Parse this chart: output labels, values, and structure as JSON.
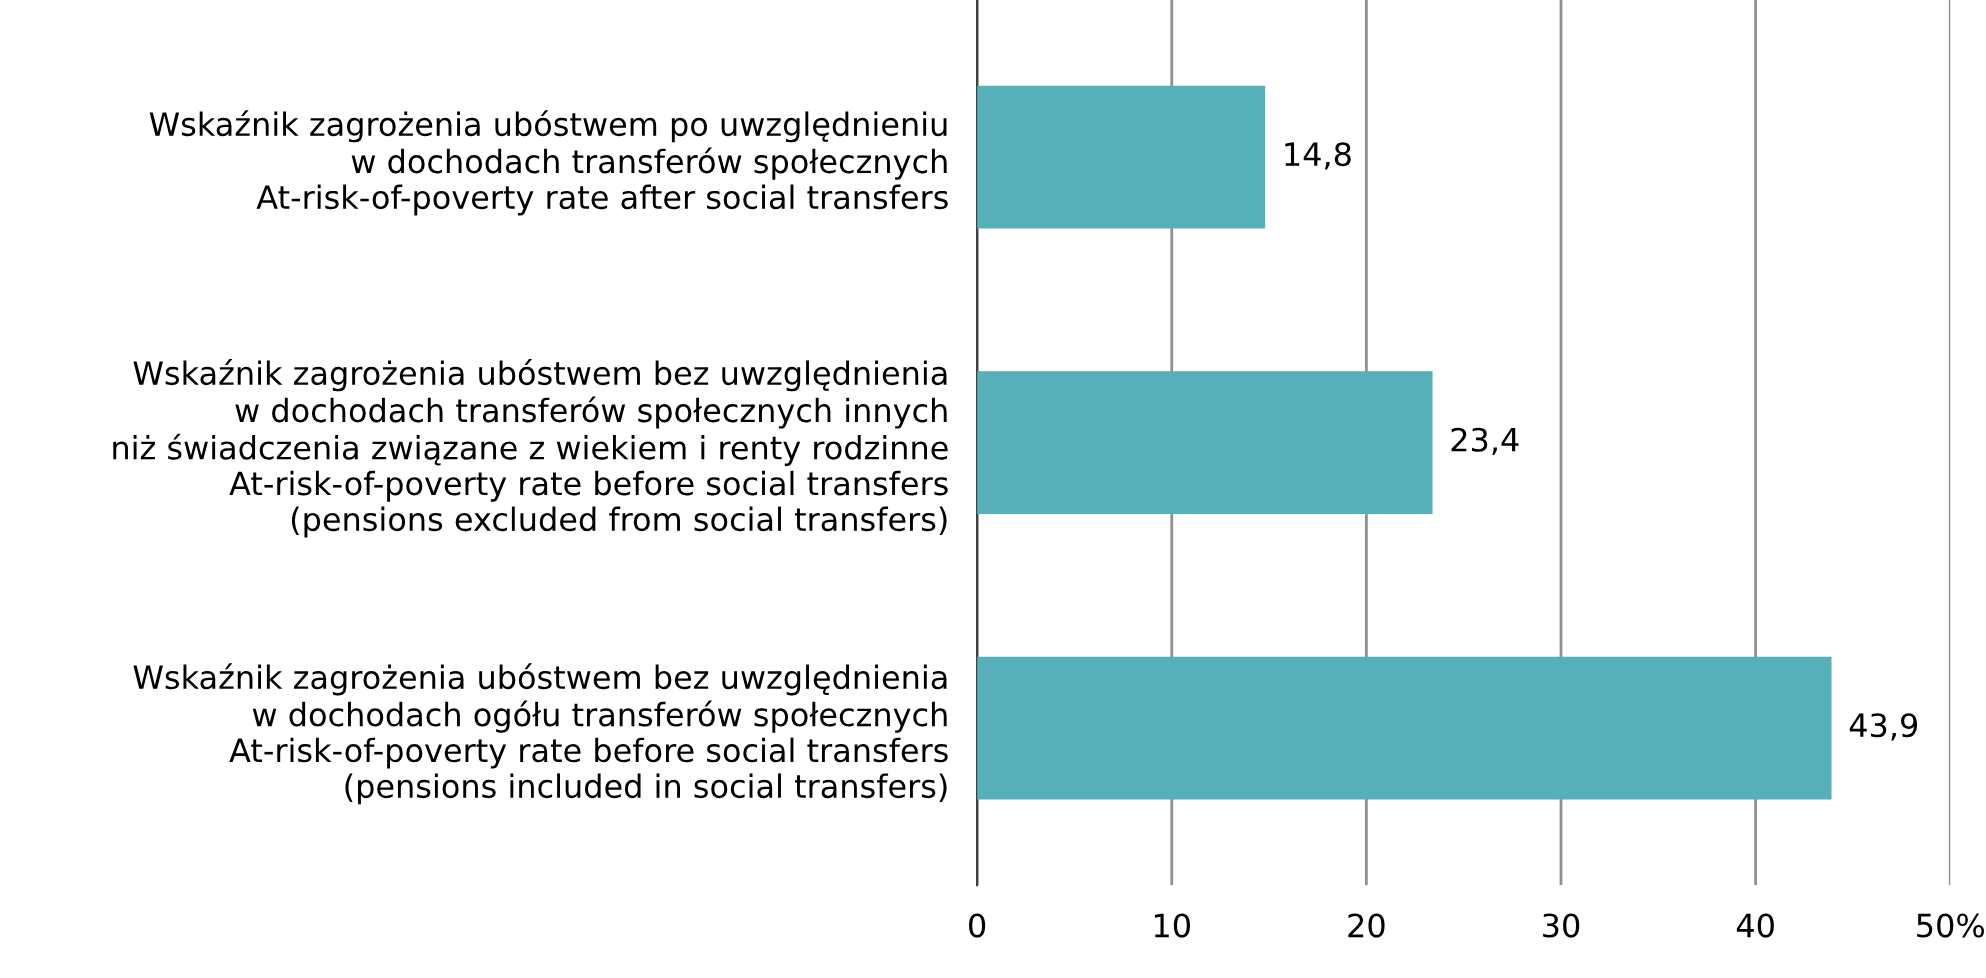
{
  "chart_data": {
    "type": "bar",
    "orientation": "horizontal",
    "categories": [
      "Wskaźnik zagrożenia ubóstwem po uwzględnieniu\nw dochodach transferów społecznych\nAt-risk-of-poverty rate after social transfers",
      "Wskaźnik zagrożenia ubóstwem bez uwzględnienia\nw dochodach transferów społecznych innych\nniż świadczenia związane z wiekiem i renty rodzinne\nAt-risk-of-poverty rate before social transfers\n(pensions excluded from social transfers)",
      "Wskaźnik zagrożenia ubóstwem bez uwzględnienia\nw dochodach ogółu transferów społecznych\nAt-risk-of-poverty rate before social transfers\n(pensions included in social transfers)"
    ],
    "values": [
      14.8,
      23.4,
      43.9
    ],
    "value_labels": [
      "14,8",
      "23,4",
      "43,9"
    ],
    "color": "#56b0b9",
    "xlim": [
      0,
      50
    ],
    "xticks": [
      0,
      10,
      20,
      30,
      40,
      {
        "value": 50,
        "label": "50%"
      }
    ],
    "grid": "x",
    "legend": false
  }
}
